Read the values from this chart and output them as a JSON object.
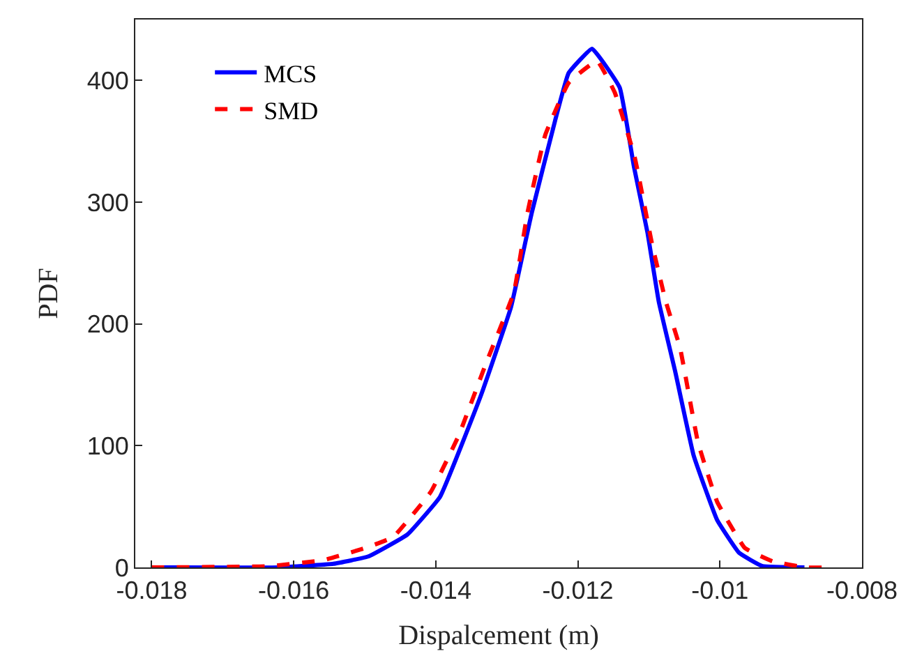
{
  "chart_data": {
    "type": "line",
    "xlabel": "Dispalcement (m)",
    "ylabel": "PDF",
    "legend": "top left",
    "xlim": [
      -0.01823,
      -0.008
    ],
    "xticks": [
      -0.018,
      -0.016,
      -0.014,
      -0.012,
      -0.01,
      -0.008
    ],
    "ylim": [
      0,
      450
    ],
    "yticks": [
      0,
      100,
      200,
      300,
      400
    ],
    "series": [
      {
        "name": "MCS",
        "color": "#0000ff",
        "line_style": "solid",
        "x": [
          -0.018,
          -0.0162,
          -0.01544,
          -0.01495,
          -0.0144,
          -0.01394,
          -0.01336,
          -0.01294,
          -0.01265,
          -0.01232,
          -0.01213,
          -0.0118,
          -0.01141,
          -0.01121,
          -0.01102,
          -0.01086,
          -0.01063,
          -0.01037,
          -0.01004,
          -0.00973,
          -0.0094,
          -0.00881
        ],
        "values": [
          0,
          0,
          3,
          9,
          27,
          58,
          142,
          214,
          291,
          367,
          406,
          426,
          394,
          329,
          275,
          218,
          161,
          92,
          39,
          12,
          1,
          0
        ]
      },
      {
        "name": "SMD",
        "color": "#ff0000",
        "line_style": "dashed",
        "x": [
          -0.018,
          -0.01636,
          -0.01558,
          -0.01499,
          -0.0146,
          -0.01407,
          -0.01368,
          -0.01329,
          -0.0129,
          -0.01271,
          -0.01246,
          -0.01213,
          -0.01173,
          -0.01148,
          -0.0112,
          -0.01095,
          -0.01076,
          -0.01056,
          -0.01031,
          -0.01004,
          -0.00965,
          -0.00926,
          -0.0088,
          -0.00842
        ],
        "values": [
          0,
          1,
          6,
          16,
          25,
          62,
          108,
          168,
          226,
          291,
          355,
          398,
          416,
          390,
          337,
          264,
          218,
          180,
          103,
          54,
          16,
          5,
          0,
          0
        ]
      }
    ]
  }
}
